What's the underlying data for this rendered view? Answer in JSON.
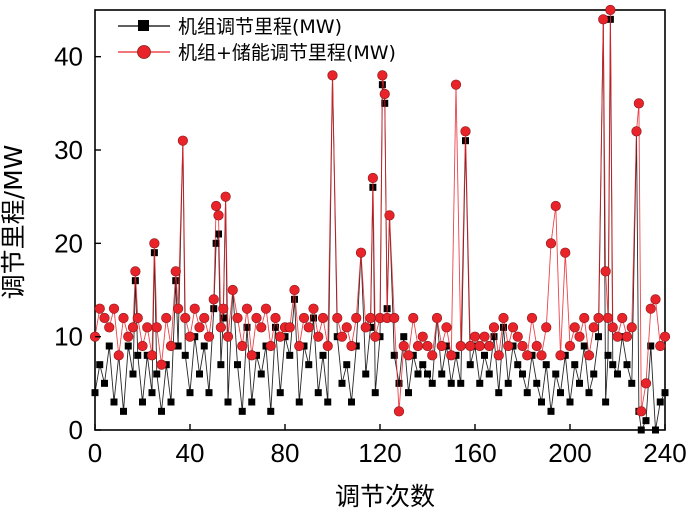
{
  "chart_data": {
    "type": "line",
    "xlabel": "调节次数",
    "ylabel": "调节里程/MW",
    "xlim": [
      0,
      240
    ],
    "ylim": [
      0,
      45
    ],
    "xticks": [
      0,
      40,
      80,
      120,
      160,
      200,
      240
    ],
    "yticks": [
      0,
      10,
      20,
      30,
      40
    ],
    "legend_position": "top-left",
    "series": [
      {
        "name": "机组调节里程(MW)",
        "color": "#000000",
        "marker": "square",
        "x": [
          0,
          2,
          4,
          6,
          8,
          10,
          12,
          14,
          16,
          17,
          18,
          20,
          22,
          24,
          25,
          26,
          28,
          30,
          32,
          34,
          35,
          37,
          38,
          40,
          42,
          44,
          46,
          48,
          50,
          51,
          52,
          53,
          54,
          55,
          56,
          58,
          60,
          62,
          64,
          66,
          68,
          70,
          72,
          74,
          76,
          78,
          80,
          82,
          84,
          86,
          88,
          90,
          92,
          94,
          96,
          98,
          100,
          102,
          104,
          106,
          108,
          110,
          112,
          114,
          116,
          117,
          118,
          120,
          121,
          122,
          123,
          124,
          126,
          128,
          130,
          132,
          134,
          136,
          138,
          140,
          142,
          144,
          146,
          148,
          150,
          152,
          154,
          156,
          158,
          160,
          162,
          164,
          166,
          168,
          170,
          172,
          174,
          176,
          178,
          180,
          182,
          184,
          186,
          188,
          190,
          192,
          194,
          196,
          198,
          200,
          202,
          204,
          206,
          208,
          210,
          212,
          214,
          215,
          216,
          217,
          218,
          220,
          222,
          224,
          226,
          228,
          229,
          230,
          232,
          234,
          236,
          238,
          240
        ],
        "y": [
          4,
          7,
          5,
          9,
          3,
          8,
          2,
          9,
          6,
          16,
          8,
          3,
          8,
          4,
          19,
          6,
          2,
          7,
          3,
          16,
          9,
          31,
          8,
          4,
          10,
          6,
          9,
          4,
          13,
          20,
          21,
          7,
          12,
          25,
          3,
          15,
          7,
          2,
          11,
          3,
          8,
          6,
          9,
          2,
          11,
          4,
          10,
          8,
          14,
          3,
          9,
          7,
          12,
          4,
          8,
          3,
          38,
          10,
          5,
          7,
          3,
          9,
          19,
          6,
          11,
          26,
          4,
          10,
          37,
          35,
          13,
          23,
          8,
          5,
          10,
          4,
          8,
          6,
          7,
          6,
          5,
          12,
          6,
          9,
          5,
          8,
          5,
          31,
          7,
          9,
          5,
          8,
          6,
          10,
          4,
          11,
          5,
          9,
          7,
          6,
          4,
          8,
          5,
          3,
          7,
          2,
          6,
          4,
          8,
          3,
          7,
          5,
          9,
          4,
          6,
          10,
          44,
          3,
          8,
          44,
          7,
          6,
          10,
          7,
          5,
          32,
          2,
          0,
          1,
          9,
          0,
          3,
          4
        ]
      },
      {
        "name": "机组+储能调节里程(MW)",
        "color": "#e8232a",
        "marker": "circle",
        "x": [
          0,
          2,
          4,
          6,
          8,
          10,
          12,
          14,
          16,
          17,
          18,
          20,
          22,
          24,
          25,
          26,
          28,
          30,
          32,
          34,
          35,
          37,
          38,
          40,
          42,
          44,
          46,
          48,
          50,
          51,
          52,
          53,
          54,
          55,
          56,
          58,
          60,
          62,
          64,
          66,
          68,
          70,
          72,
          74,
          76,
          78,
          80,
          82,
          84,
          86,
          88,
          90,
          92,
          94,
          96,
          98,
          100,
          102,
          104,
          106,
          108,
          110,
          112,
          114,
          116,
          117,
          118,
          120,
          121,
          122,
          123,
          124,
          126,
          128,
          130,
          132,
          134,
          136,
          138,
          140,
          142,
          144,
          146,
          148,
          150,
          152,
          154,
          156,
          158,
          160,
          162,
          164,
          166,
          168,
          170,
          172,
          174,
          176,
          178,
          180,
          182,
          184,
          186,
          188,
          190,
          192,
          194,
          196,
          198,
          200,
          202,
          204,
          206,
          208,
          210,
          212,
          214,
          215,
          216,
          217,
          218,
          220,
          222,
          224,
          226,
          228,
          229,
          230,
          232,
          234,
          236,
          238,
          240
        ],
        "y": [
          10,
          13,
          12,
          11,
          13,
          8,
          12,
          10,
          11,
          17,
          12,
          9,
          11,
          8,
          20,
          11,
          7,
          12,
          9,
          17,
          13,
          31,
          12,
          10,
          13,
          11,
          12,
          10,
          14,
          24,
          23,
          11,
          13,
          25,
          10,
          15,
          12,
          9,
          13,
          8,
          12,
          11,
          13,
          9,
          12,
          10,
          11,
          11,
          15,
          9,
          12,
          11,
          13,
          10,
          12,
          9,
          38,
          12,
          10,
          11,
          9,
          12,
          19,
          11,
          12,
          27,
          10,
          12,
          38,
          36,
          12,
          23,
          12,
          2,
          9,
          8,
          12,
          9,
          10,
          9,
          8,
          12,
          9,
          11,
          8,
          37,
          9,
          32,
          9,
          10,
          9,
          10,
          9,
          11,
          8,
          12,
          9,
          11,
          10,
          9,
          8,
          12,
          9,
          8,
          11,
          20,
          24,
          8,
          19,
          9,
          11,
          10,
          12,
          8,
          11,
          12,
          44,
          17,
          12,
          45,
          11,
          10,
          12,
          10,
          11,
          32,
          35,
          2,
          5,
          13,
          14,
          9,
          10
        ]
      }
    ]
  }
}
